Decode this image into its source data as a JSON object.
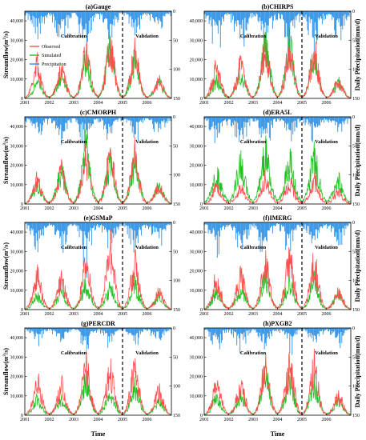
{
  "figure": {
    "ylabel_left_parts": [
      "Streamflow(",
      "m",
      "3",
      "/s)"
    ],
    "ylabel_right": "Daily Precipitation(mm/d)",
    "xlabel": "Time",
    "region_left": "Calibration",
    "region_right": "Validation",
    "legend": [
      {
        "label": "Observed",
        "color": "#ff4d4d"
      },
      {
        "label": "Simulated",
        "color": "#22c022"
      },
      {
        "label": "Precipitation",
        "color": "#2a8fe6"
      }
    ],
    "colors": {
      "observed": "#ff4d4d",
      "simulated": "#22c022",
      "precipitation": "#2a8fe6",
      "divider": "#000000"
    }
  },
  "chart_data": [
    {
      "type": "line",
      "title": "(a)Gauge",
      "x": [
        2001,
        2001.5,
        2002,
        2002.5,
        2003,
        2003.5,
        2004,
        2004.5,
        2005,
        2005.5,
        2006,
        2006.5,
        2007
      ],
      "xticks": [
        "2001",
        "2002",
        "2003",
        "2004",
        "2005",
        "2006"
      ],
      "ylim": [
        0,
        45000
      ],
      "yticks": [
        "0",
        "10,000",
        "20,000",
        "30,000",
        "40,000"
      ],
      "y2lim": [
        150,
        0
      ],
      "y2ticks": [
        "0",
        "50",
        "100",
        "150"
      ],
      "split_year": 2005,
      "series": [
        {
          "name": "Observed",
          "values": [
            500,
            17000,
            2000,
            15000,
            1500,
            23000,
            3000,
            26000,
            1500,
            24000,
            2000,
            9000,
            1000
          ]
        },
        {
          "name": "Simulated",
          "values": [
            600,
            8000,
            2500,
            11000,
            2000,
            19000,
            3500,
            27000,
            2000,
            20000,
            2500,
            8000,
            1200
          ]
        },
        {
          "name": "Precipitation",
          "values": [
            15,
            40,
            20,
            45,
            18,
            70,
            20,
            40,
            15,
            45,
            20,
            35,
            12
          ]
        }
      ]
    },
    {
      "type": "line",
      "title": "(b)CHIRPS",
      "x": [
        2001,
        2001.5,
        2002,
        2002.5,
        2003,
        2003.5,
        2004,
        2004.5,
        2005,
        2005.5,
        2006,
        2006.5,
        2007
      ],
      "xticks": [
        "2001",
        "2002",
        "2003",
        "2004",
        "2005",
        "2006"
      ],
      "ylim": [
        0,
        45000
      ],
      "yticks": [
        "0",
        "10,000",
        "20,000",
        "30,000",
        "40,000"
      ],
      "y2lim": [
        150,
        0
      ],
      "y2ticks": [
        "0",
        "50",
        "100",
        "150"
      ],
      "split_year": 2005,
      "series": [
        {
          "name": "Observed",
          "values": [
            500,
            16000,
            2000,
            17000,
            1500,
            25000,
            3000,
            24000,
            1500,
            24000,
            2000,
            9000,
            1000
          ]
        },
        {
          "name": "Simulated",
          "values": [
            700,
            9000,
            3000,
            12000,
            2500,
            28000,
            4000,
            27000,
            2000,
            21000,
            2500,
            8000,
            1200
          ]
        },
        {
          "name": "Precipitation",
          "values": [
            20,
            60,
            25,
            55,
            20,
            60,
            25,
            60,
            20,
            55,
            25,
            40,
            15
          ]
        }
      ]
    },
    {
      "type": "line",
      "title": "(c)CMORPH",
      "x": [
        2001,
        2001.5,
        2002,
        2002.5,
        2003,
        2003.5,
        2004,
        2004.5,
        2005,
        2005.5,
        2006,
        2006.5,
        2007
      ],
      "xticks": [
        "2001",
        "2002",
        "2003",
        "2004",
        "2005",
        "2006"
      ],
      "ylim": [
        0,
        45000
      ],
      "yticks": [
        "0",
        "10,000",
        "20,000",
        "30,000",
        "40,000"
      ],
      "y2lim": [
        150,
        0
      ],
      "y2ticks": [
        "0",
        "50",
        "100",
        "150"
      ],
      "split_year": 2005,
      "series": [
        {
          "name": "Observed",
          "values": [
            500,
            12000,
            2000,
            16000,
            1500,
            23000,
            3000,
            25000,
            1500,
            24000,
            2000,
            9000,
            1000
          ]
        },
        {
          "name": "Simulated",
          "values": [
            800,
            10000,
            3000,
            17000,
            2500,
            29000,
            4000,
            20000,
            2500,
            21000,
            3000,
            9000,
            1500
          ]
        },
        {
          "name": "Precipitation",
          "values": [
            15,
            30,
            18,
            35,
            15,
            40,
            18,
            35,
            15,
            30,
            18,
            25,
            12
          ]
        }
      ]
    },
    {
      "type": "line",
      "title": "(d)ERA5L",
      "x": [
        2001,
        2001.5,
        2002,
        2002.5,
        2003,
        2003.5,
        2004,
        2004.5,
        2005,
        2005.5,
        2006,
        2006.5,
        2007
      ],
      "xticks": [
        "2001",
        "2002",
        "2003",
        "2004",
        "2005",
        "2006"
      ],
      "ylim": [
        0,
        45000
      ],
      "yticks": [
        "0",
        "10,000",
        "20,000",
        "30,000",
        "40,000"
      ],
      "y2lim": [
        150,
        0
      ],
      "y2ticks": [
        "0",
        "50",
        "100",
        "150"
      ],
      "split_year": 2005,
      "series": [
        {
          "name": "Observed",
          "values": [
            500,
            9000,
            2000,
            8000,
            1500,
            13000,
            3000,
            11000,
            1500,
            12000,
            2000,
            6000,
            1000
          ]
        },
        {
          "name": "Simulated",
          "values": [
            3000,
            15000,
            6000,
            20000,
            5000,
            26000,
            7000,
            22000,
            5000,
            24000,
            6000,
            12000,
            3000
          ]
        },
        {
          "name": "Precipitation",
          "values": [
            20,
            30,
            25,
            35,
            20,
            35,
            22,
            30,
            20,
            30,
            22,
            28,
            18
          ]
        }
      ]
    },
    {
      "type": "line",
      "title": "(e)GSMaP",
      "x": [
        2001,
        2001.5,
        2002,
        2002.5,
        2003,
        2003.5,
        2004,
        2004.5,
        2005,
        2005.5,
        2006,
        2006.5,
        2007
      ],
      "xticks": [
        "2001",
        "2002",
        "2003",
        "2004",
        "2005",
        "2006"
      ],
      "ylim": [
        0,
        45000
      ],
      "yticks": [
        "0",
        "10,000",
        "20,000",
        "30,000",
        "40,000"
      ],
      "y2lim": [
        150,
        0
      ],
      "y2ticks": [
        "0",
        "50",
        "100",
        "150"
      ],
      "split_year": 2005,
      "series": [
        {
          "name": "Observed",
          "values": [
            500,
            18000,
            2000,
            15000,
            1500,
            23000,
            3000,
            30000,
            1500,
            24000,
            2000,
            9000,
            1000
          ]
        },
        {
          "name": "Simulated",
          "values": [
            500,
            7000,
            2000,
            9000,
            1800,
            13000,
            2500,
            11000,
            1500,
            12000,
            2000,
            7000,
            1000
          ]
        },
        {
          "name": "Precipitation",
          "values": [
            15,
            45,
            18,
            50,
            15,
            55,
            18,
            45,
            15,
            45,
            18,
            35,
            12
          ]
        }
      ]
    },
    {
      "type": "line",
      "title": "(f)IMERG",
      "x": [
        2001,
        2001.5,
        2002,
        2002.5,
        2003,
        2003.5,
        2004,
        2004.5,
        2005,
        2005.5,
        2006,
        2006.5,
        2007
      ],
      "xticks": [
        "2001",
        "2002",
        "2003",
        "2004",
        "2005",
        "2006"
      ],
      "ylim": [
        0,
        45000
      ],
      "yticks": [
        "0",
        "10,000",
        "20,000",
        "30,000",
        "40,000"
      ],
      "y2lim": [
        150,
        0
      ],
      "y2ticks": [
        "0",
        "50",
        "100",
        "150"
      ],
      "split_year": 2005,
      "series": [
        {
          "name": "Observed",
          "values": [
            500,
            16000,
            2000,
            18000,
            1500,
            23000,
            3000,
            26000,
            1500,
            24000,
            2000,
            9000,
            1000
          ]
        },
        {
          "name": "Simulated",
          "values": [
            600,
            9000,
            2500,
            10000,
            2000,
            16000,
            3000,
            14000,
            1800,
            14000,
            2200,
            8000,
            1100
          ]
        },
        {
          "name": "Precipitation",
          "values": [
            15,
            45,
            18,
            48,
            15,
            50,
            18,
            48,
            15,
            42,
            18,
            35,
            12
          ]
        }
      ]
    },
    {
      "type": "line",
      "title": "(g)PERCDR",
      "x": [
        2001,
        2001.5,
        2002,
        2002.5,
        2003,
        2003.5,
        2004,
        2004.5,
        2005,
        2005.5,
        2006,
        2006.5,
        2007
      ],
      "xticks": [
        "2001",
        "2002",
        "2003",
        "2004",
        "2005",
        "2006"
      ],
      "ylim": [
        0,
        45000
      ],
      "yticks": [
        "0",
        "10,000",
        "20,000",
        "30,000",
        "40,000"
      ],
      "y2lim": [
        150,
        0
      ],
      "y2ticks": [
        "0",
        "50",
        "100",
        "150"
      ],
      "split_year": 2005,
      "series": [
        {
          "name": "Observed",
          "values": [
            500,
            18000,
            2000,
            15000,
            1500,
            25000,
            3000,
            22000,
            1500,
            24000,
            2000,
            12000,
            1000
          ]
        },
        {
          "name": "Simulated",
          "values": [
            500,
            8000,
            2000,
            8000,
            1800,
            18000,
            2500,
            12000,
            1500,
            14000,
            2000,
            7000,
            1000
          ]
        },
        {
          "name": "Precipitation",
          "values": [
            10,
            25,
            12,
            28,
            10,
            30,
            12,
            28,
            10,
            25,
            12,
            20,
            8
          ]
        }
      ]
    },
    {
      "type": "line",
      "title": "(h)PXGB2",
      "x": [
        2001,
        2001.5,
        2002,
        2002.5,
        2003,
        2003.5,
        2004,
        2004.5,
        2005,
        2005.5,
        2006,
        2006.5,
        2007
      ],
      "xticks": [
        "2001",
        "2002",
        "2003",
        "2004",
        "2005",
        "2006"
      ],
      "ylim": [
        0,
        45000
      ],
      "yticks": [
        "0",
        "10,000",
        "20,000",
        "30,000",
        "40,000"
      ],
      "y2lim": [
        150,
        0
      ],
      "y2ticks": [
        "0",
        "50",
        "100",
        "150"
      ],
      "split_year": 2005,
      "series": [
        {
          "name": "Observed",
          "values": [
            500,
            16000,
            2000,
            15000,
            1500,
            24000,
            3000,
            25000,
            1500,
            24000,
            2000,
            10000,
            1000
          ]
        },
        {
          "name": "Simulated",
          "values": [
            600,
            9000,
            2500,
            10000,
            2000,
            20000,
            3000,
            16000,
            1800,
            16000,
            2200,
            8000,
            1100
          ]
        },
        {
          "name": "Precipitation",
          "values": [
            12,
            28,
            14,
            30,
            12,
            32,
            14,
            30,
            12,
            28,
            14,
            22,
            10
          ]
        }
      ]
    }
  ]
}
